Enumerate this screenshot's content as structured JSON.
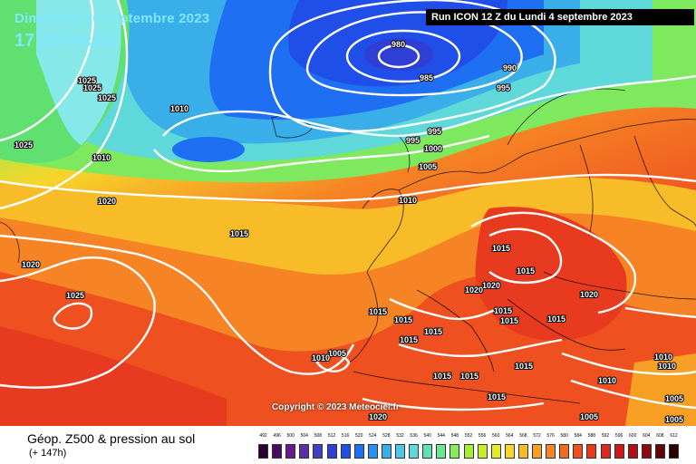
{
  "header": {
    "date_line": "Dimanche 10 septembre 2023",
    "time_line": "17:00 locale",
    "run_info": "Run ICON 12 Z du Lundi 4 septembre 2023"
  },
  "copyright": "Copyright © 2023 Meteociel.fr",
  "footer": {
    "title": "Géop. Z500 & pression au sol",
    "subtitle": "(+ 147h)"
  },
  "isobar_labels": [
    {
      "t": "980"
    },
    {
      "t": "985"
    },
    {
      "t": "990"
    },
    {
      "t": "995"
    },
    {
      "t": "995"
    },
    {
      "t": "995"
    },
    {
      "t": "1000"
    },
    {
      "t": "1005"
    },
    {
      "t": "1010"
    },
    {
      "t": "1010"
    },
    {
      "t": "1010"
    },
    {
      "t": "1015"
    },
    {
      "t": "1015"
    },
    {
      "t": "1015"
    },
    {
      "t": "1015"
    },
    {
      "t": "1015"
    },
    {
      "t": "1020"
    },
    {
      "t": "1020"
    },
    {
      "t": "1020"
    },
    {
      "t": "1020"
    },
    {
      "t": "1025"
    },
    {
      "t": "1025"
    },
    {
      "t": "1025"
    },
    {
      "t": "1025"
    },
    {
      "t": "1015"
    },
    {
      "t": "1015"
    },
    {
      "t": "1015"
    },
    {
      "t": "1015"
    },
    {
      "t": "1015"
    },
    {
      "t": "1015"
    },
    {
      "t": "1015"
    },
    {
      "t": "1015"
    },
    {
      "t": "1015"
    },
    {
      "t": "1010"
    },
    {
      "t": "1010"
    },
    {
      "t": "1005"
    },
    {
      "t": "1005"
    },
    {
      "t": "1005"
    },
    {
      "t": "1010"
    },
    {
      "t": "1020"
    },
    {
      "t": "1020"
    },
    {
      "t": "1025"
    },
    {
      "t": "1005"
    },
    {
      "t": "1010"
    }
  ],
  "scale": {
    "values": [
      "492",
      "496",
      "500",
      "504",
      "508",
      "512",
      "516",
      "520",
      "524",
      "528",
      "532",
      "536",
      "540",
      "544",
      "548",
      "552",
      "556",
      "560",
      "564",
      "568",
      "572",
      "576",
      "580",
      "584",
      "588",
      "592",
      "596",
      "600",
      "604",
      "608",
      "612"
    ],
    "colors": [
      "#2a0033",
      "#4a0a5e",
      "#6a1a8a",
      "#5a2fa6",
      "#4040c0",
      "#2f3fd6",
      "#1f4fe8",
      "#1f6ff2",
      "#2a8ff0",
      "#3aaee8",
      "#4fc6e6",
      "#5fd8da",
      "#5fe0b8",
      "#6ae890",
      "#86ec5a",
      "#a6ee3a",
      "#c6ee2a",
      "#e6ea2a",
      "#f6d62a",
      "#f8bc28",
      "#f8a026",
      "#f68424",
      "#f26a22",
      "#ee5020",
      "#e83a1e",
      "#e0261e",
      "#cc1a1c",
      "#b01018",
      "#8c0a12",
      "#62040a",
      "#2a0004"
    ]
  }
}
